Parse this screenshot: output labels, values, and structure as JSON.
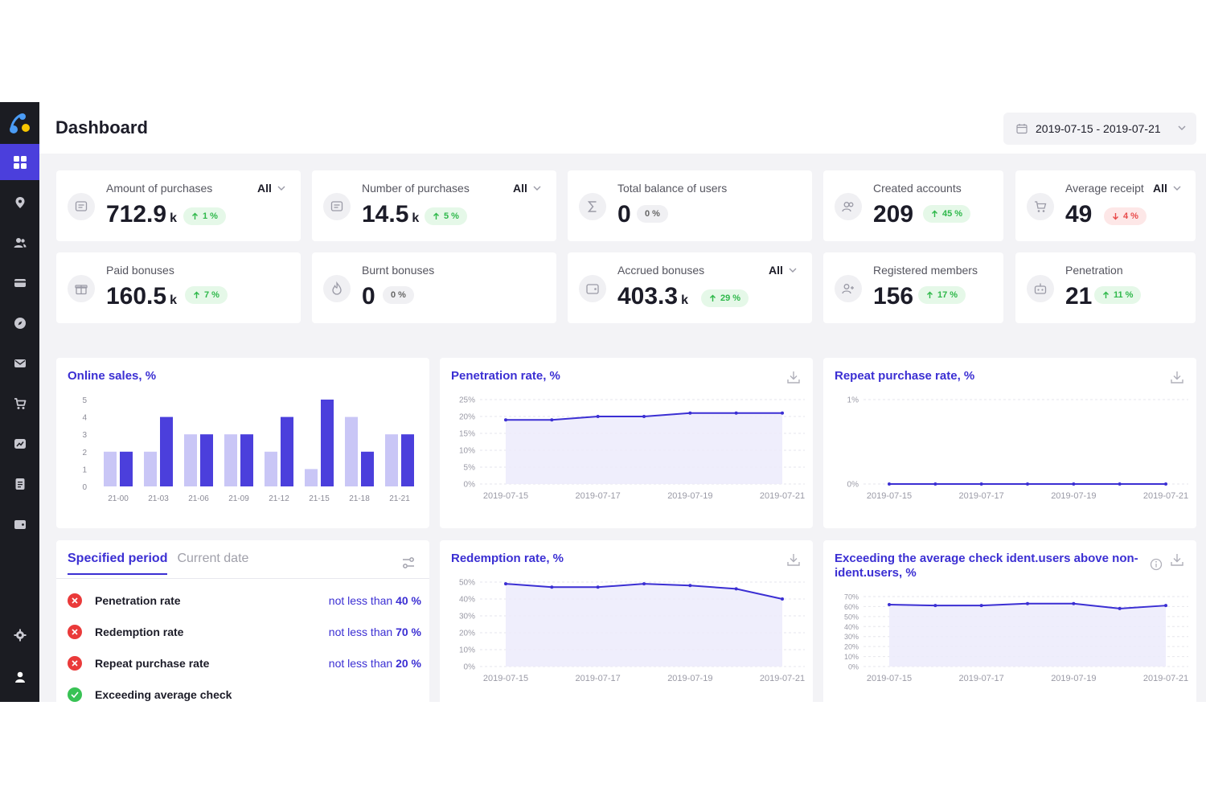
{
  "header": {
    "title": "Dashboard",
    "date_range": "2019-07-15 - 2019-07-21"
  },
  "sidebar": {
    "items": [
      {
        "icon": "dashboard-icon"
      },
      {
        "icon": "location-icon"
      },
      {
        "icon": "users-icon"
      },
      {
        "icon": "card-icon"
      },
      {
        "icon": "compass-icon"
      },
      {
        "icon": "mail-icon"
      },
      {
        "icon": "cart-icon"
      },
      {
        "icon": "chart-icon"
      },
      {
        "icon": "document-icon"
      },
      {
        "icon": "wallet-icon"
      },
      {
        "icon": "settings-icon"
      },
      {
        "icon": "profile-icon"
      }
    ]
  },
  "kpis": [
    {
      "label": "Amount of purchases",
      "filter": "All",
      "value": "712.9",
      "unit": "k",
      "change": "1 %",
      "trend": "up"
    },
    {
      "label": "Number of purchases",
      "filter": "All",
      "value": "14.5",
      "unit": "k",
      "change": "5 %",
      "trend": "up"
    },
    {
      "label": "Total balance of users",
      "filter": "",
      "value": "0",
      "unit": "",
      "change": "0 %",
      "trend": "none"
    },
    {
      "label": "Created accounts",
      "filter": "",
      "value": "209",
      "unit": "",
      "change": "45 %",
      "trend": "up"
    },
    {
      "label": "Average receipt",
      "filter": "All",
      "value": "49",
      "unit": "",
      "change": "4 %",
      "trend": "down"
    },
    {
      "label": "Paid bonuses",
      "filter": "",
      "value": "160.5",
      "unit": "k",
      "change": "7 %",
      "trend": "up"
    },
    {
      "label": "Burnt bonuses",
      "filter": "",
      "value": "0",
      "unit": "",
      "change": "0 %",
      "trend": "none"
    },
    {
      "label": "Accrued bonuses",
      "filter": "All",
      "value": "403.3",
      "unit": "k",
      "change": "29 %",
      "trend": "up"
    },
    {
      "label": "Registered members",
      "filter": "",
      "value": "156",
      "unit": "",
      "change": "17 %",
      "trend": "up"
    },
    {
      "label": "Penetration",
      "filter": "",
      "value": "21",
      "unit": "",
      "change": "11 %",
      "trend": "up"
    }
  ],
  "colors": {
    "accent": "#3b2fd3",
    "bar_light": "#c9c6f6",
    "bar_dark": "#4b3fdc",
    "up": "#2eb84a",
    "down": "#e84a4a"
  },
  "charts": {
    "online_sales": {
      "title": "Online sales, %"
    },
    "penetration": {
      "title": "Penetration rate, %"
    },
    "repeat": {
      "title": "Repeat purchase rate, %"
    },
    "redemption": {
      "title": "Redemption rate, %"
    },
    "exceeding": {
      "title": "Exceeding the average check ident.users above non-ident.users, %"
    }
  },
  "chart_data": [
    {
      "type": "bar",
      "title": "Online sales, %",
      "categories": [
        "21-00",
        "21-03",
        "21-06",
        "21-09",
        "21-12",
        "21-15",
        "21-18",
        "21-21"
      ],
      "series": [
        {
          "values": [
            2,
            2,
            3,
            3,
            2,
            1,
            4,
            3
          ]
        },
        {
          "values": [
            2,
            4,
            3,
            3,
            4,
            5,
            2,
            3
          ]
        }
      ],
      "ylim": [
        0,
        5
      ],
      "yticks": [
        "0",
        "1",
        "2",
        "3",
        "4",
        "5"
      ]
    },
    {
      "type": "area",
      "title": "Penetration rate, %",
      "x": [
        "2019-07-15",
        "2019-07-16",
        "2019-07-17",
        "2019-07-18",
        "2019-07-19",
        "2019-07-20",
        "2019-07-21"
      ],
      "values": [
        19,
        19,
        20,
        20,
        21,
        21,
        21
      ],
      "ylim": [
        0,
        25
      ],
      "yticks": [
        "0%",
        "5%",
        "10%",
        "15%",
        "20%",
        "25%"
      ],
      "xticks": [
        "2019-07-15",
        "2019-07-17",
        "2019-07-19",
        "2019-07-21"
      ]
    },
    {
      "type": "line",
      "title": "Repeat purchase rate, %",
      "x": [
        "2019-07-15",
        "2019-07-16",
        "2019-07-17",
        "2019-07-18",
        "2019-07-19",
        "2019-07-20",
        "2019-07-21"
      ],
      "values": [
        0,
        0,
        0,
        0,
        0,
        0,
        0
      ],
      "ylim": [
        0,
        1
      ],
      "yticks": [
        "0%",
        "1%"
      ],
      "xticks": [
        "2019-07-15",
        "2019-07-17",
        "2019-07-19",
        "2019-07-21"
      ]
    },
    {
      "type": "area",
      "title": "Redemption rate, %",
      "x": [
        "2019-07-15",
        "2019-07-16",
        "2019-07-17",
        "2019-07-18",
        "2019-07-19",
        "2019-07-20",
        "2019-07-21"
      ],
      "values": [
        49,
        47,
        47,
        49,
        48,
        46,
        40
      ],
      "ylim": [
        0,
        50
      ],
      "yticks": [
        "0%",
        "10%",
        "20%",
        "30%",
        "40%",
        "50%"
      ],
      "xticks": [
        "2019-07-15",
        "2019-07-17",
        "2019-07-19",
        "2019-07-21"
      ]
    },
    {
      "type": "area",
      "title": "Exceeding the average check ident.users above non-ident.users, %",
      "x": [
        "2019-07-15",
        "2019-07-16",
        "2019-07-17",
        "2019-07-18",
        "2019-07-19",
        "2019-07-20",
        "2019-07-21"
      ],
      "values": [
        62,
        61,
        61,
        63,
        63,
        58,
        61
      ],
      "ylim": [
        0,
        70
      ],
      "yticks": [
        "0%",
        "10%",
        "20%",
        "30%",
        "40%",
        "50%",
        "60%",
        "70%"
      ],
      "xticks": [
        "2019-07-15",
        "2019-07-17",
        "2019-07-19",
        "2019-07-21"
      ]
    }
  ],
  "goals": {
    "tabs": [
      "Specified period",
      "Current date"
    ],
    "rows": [
      {
        "name": "Penetration rate",
        "prefix": "not less than",
        "value": "40",
        "unit": "%",
        "status": "fail"
      },
      {
        "name": "Redemption rate",
        "prefix": "not less than",
        "value": "70",
        "unit": "%",
        "status": "fail"
      },
      {
        "name": "Repeat purchase rate",
        "prefix": "not less than",
        "value": "20",
        "unit": "%",
        "status": "fail"
      },
      {
        "name": "Exceeding average check",
        "prefix": "",
        "value": "",
        "unit": "",
        "status": "ok"
      }
    ]
  }
}
